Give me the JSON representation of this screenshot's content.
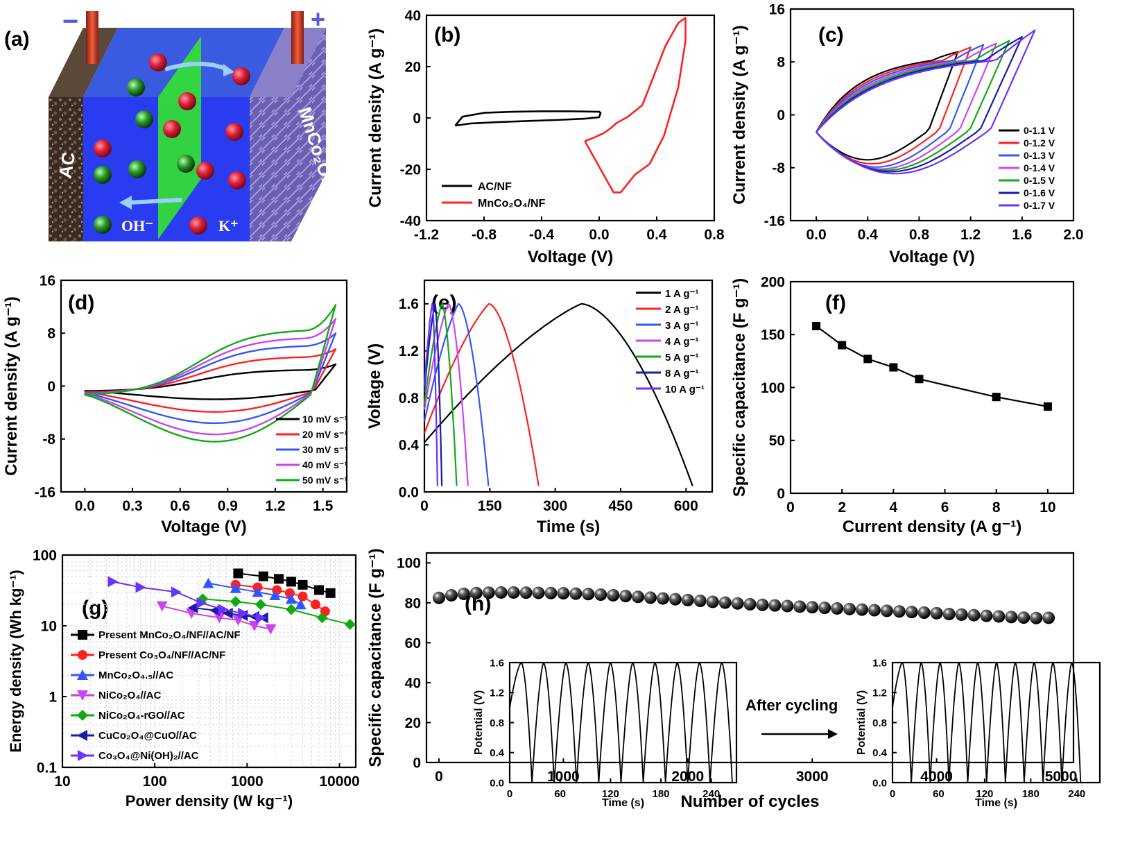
{
  "figure": {
    "panel_labels": {
      "a": "(a)",
      "b": "(b)",
      "c": "(c)",
      "d": "(d)",
      "e": "(e)",
      "f": "(f)",
      "g": "(g)",
      "h": "(h)"
    },
    "schematic": {
      "minus": "−",
      "plus": "+",
      "left_electrode": "AC",
      "right_electrode": "MnCo₂O₄",
      "ion_left": "OH⁻",
      "ion_right": "K⁺"
    }
  },
  "chart_data": [
    {
      "panel": "b",
      "type": "line",
      "xlabel": "Voltage (V)",
      "ylabel": "Current density (A g⁻¹)",
      "xlim": [
        -1.2,
        0.8
      ],
      "ylim": [
        -40,
        40
      ],
      "xticks": [
        -1.2,
        -0.8,
        -0.4,
        0.0,
        0.4,
        0.8
      ],
      "xtick_labels": [
        "-1.2",
        "-0.8",
        "-0.4",
        "0.0",
        "0.4",
        "0.8"
      ],
      "yticks": [
        -40,
        -20,
        0,
        20,
        40
      ],
      "ytick_labels": [
        "-40",
        "-20",
        "0",
        "20",
        "40"
      ],
      "series": [
        {
          "name": "AC/NF",
          "color": "#000000",
          "x": [
            -1.0,
            -0.9,
            -0.7,
            -0.5,
            -0.3,
            -0.1,
            0.0,
            0.01,
            0.0,
            -0.2,
            -0.4,
            -0.6,
            -0.8,
            -0.95,
            -1.0
          ],
          "y": [
            -3,
            -2.2,
            -1.6,
            -1.2,
            -0.8,
            -0.3,
            0.3,
            2.0,
            2.4,
            2.6,
            2.6,
            2.4,
            2.0,
            0.5,
            -3
          ]
        },
        {
          "name": "MnCo₂O₄/NF",
          "color": "#ff2020",
          "x": [
            -0.1,
            -0.05,
            0.03,
            0.1,
            0.15,
            0.25,
            0.35,
            0.45,
            0.55,
            0.6,
            0.6,
            0.55,
            0.46,
            0.37,
            0.3,
            0.2,
            0.12,
            0.08,
            0.03,
            -0.05,
            -0.1
          ],
          "y": [
            -9,
            -14,
            -22,
            -29,
            -29,
            -22,
            -18,
            -7,
            12,
            30,
            39,
            37,
            28,
            15,
            5,
            0.5,
            -2,
            -4,
            -6,
            -8,
            -9
          ]
        }
      ]
    },
    {
      "panel": "c",
      "type": "line",
      "xlabel": "Voltage (V)",
      "ylabel": "Current density (A g⁻¹)",
      "xlim": [
        -0.2,
        2.0
      ],
      "ylim": [
        -16,
        16
      ],
      "xticks": [
        0.0,
        0.4,
        0.8,
        1.2,
        1.6,
        2.0
      ],
      "xtick_labels": [
        "0.0",
        "0.4",
        "0.8",
        "1.2",
        "1.6",
        "2.0"
      ],
      "yticks": [
        -16,
        -8,
        0,
        8,
        16
      ],
      "ytick_labels": [
        "-16",
        "-8",
        "0",
        "8",
        "16"
      ],
      "series": [
        {
          "name": "0-1.1 V",
          "color": "#000000",
          "vmax": 1.1,
          "imax": 9.5,
          "imin": -6.8
        },
        {
          "name": "0-1.2 V",
          "color": "#ff2020",
          "vmax": 1.2,
          "imax": 10.2,
          "imin": -7.4
        },
        {
          "name": "0-1.3 V",
          "color": "#3355ff",
          "vmax": 1.3,
          "imax": 10.6,
          "imin": -7.9
        },
        {
          "name": "0-1.4 V",
          "color": "#cc44ee",
          "vmax": 1.4,
          "imax": 10.8,
          "imin": -8.2
        },
        {
          "name": "0-1.5 V",
          "color": "#11aa11",
          "vmax": 1.5,
          "imax": 11.2,
          "imin": -8.4
        },
        {
          "name": "0-1.6 V",
          "color": "#1a1aa8",
          "vmax": 1.6,
          "imax": 11.8,
          "imin": -8.6
        },
        {
          "name": "0-1.7 V",
          "color": "#6633ff",
          "vmax": 1.7,
          "imax": 12.8,
          "imin": -8.9
        }
      ]
    },
    {
      "panel": "d",
      "type": "line",
      "xlabel": "Voltage (V)",
      "ylabel": "Current density (A g⁻¹)",
      "xlim": [
        -0.15,
        1.65
      ],
      "ylim": [
        -16,
        16
      ],
      "xticks": [
        0.0,
        0.3,
        0.6,
        0.9,
        1.2,
        1.5
      ],
      "xtick_labels": [
        "0.0",
        "0.3",
        "0.6",
        "0.9",
        "1.2",
        "1.5"
      ],
      "yticks": [
        -16,
        -8,
        0,
        8,
        16
      ],
      "ytick_labels": [
        "-16",
        "-8",
        "0",
        "8",
        "16"
      ],
      "series": [
        {
          "name": "10 mV s⁻¹",
          "color": "#000000",
          "top": 2.5,
          "bottom": -2.0,
          "tip": 3.3
        },
        {
          "name": "20 mV s⁻¹",
          "color": "#ff2020",
          "top": 4.5,
          "bottom": -3.9,
          "tip": 5.6
        },
        {
          "name": "30 mV s⁻¹",
          "color": "#3355ff",
          "top": 6.2,
          "bottom": -5.6,
          "tip": 8.0
        },
        {
          "name": "40 mV s⁻¹",
          "color": "#cc44ee",
          "top": 7.4,
          "bottom": -7.3,
          "tip": 10.2
        },
        {
          "name": "50 mV s⁻¹",
          "color": "#11aa11",
          "top": 8.6,
          "bottom": -8.4,
          "tip": 12.3
        }
      ]
    },
    {
      "panel": "e",
      "type": "line",
      "xlabel": "Time (s)",
      "ylabel": "Voltage (V)",
      "xlim": [
        0,
        660
      ],
      "ylim": [
        0,
        1.8
      ],
      "xticks": [
        0,
        150,
        300,
        450,
        600
      ],
      "xtick_labels": [
        "0",
        "150",
        "300",
        "450",
        "600"
      ],
      "yticks": [
        0.0,
        0.4,
        0.8,
        1.2,
        1.6
      ],
      "ytick_labels": [
        "0.0",
        "0.4",
        "0.8",
        "1.2",
        "1.6"
      ],
      "series": [
        {
          "name": "1 A g⁻¹",
          "color": "#000000",
          "charge_end": 360,
          "discharge_end": 615,
          "start_v": 0.42
        },
        {
          "name": "2 A g⁻¹",
          "color": "#ff2020",
          "charge_end": 148,
          "discharge_end": 262,
          "start_v": 0.5
        },
        {
          "name": "3 A g⁻¹",
          "color": "#3355ff",
          "charge_end": 78,
          "discharge_end": 147,
          "start_v": 0.6
        },
        {
          "name": "4 A g⁻¹",
          "color": "#cc44ee",
          "charge_end": 55,
          "discharge_end": 100,
          "start_v": 0.7
        },
        {
          "name": "5 A g⁻¹",
          "color": "#11aa11",
          "charge_end": 40,
          "discharge_end": 74,
          "start_v": 0.75
        },
        {
          "name": "8 A g⁻¹",
          "color": "#1a1aa8",
          "charge_end": 24,
          "discharge_end": 40,
          "start_v": 0.85
        },
        {
          "name": "10 A g⁻¹",
          "color": "#6633ff",
          "charge_end": 18,
          "discharge_end": 30,
          "start_v": 0.9
        }
      ]
    },
    {
      "panel": "f",
      "type": "line",
      "xlabel": "Current density (A g⁻¹)",
      "ylabel": "Specific capacitance (F g⁻¹)",
      "xlim": [
        0,
        11
      ],
      "ylim": [
        0,
        200
      ],
      "xticks": [
        0,
        2,
        4,
        6,
        8,
        10
      ],
      "xtick_labels": [
        "0",
        "2",
        "4",
        "6",
        "8",
        "10"
      ],
      "yticks": [
        0,
        50,
        100,
        150,
        200
      ],
      "ytick_labels": [
        "0",
        "50",
        "100",
        "150",
        "200"
      ],
      "x": [
        1,
        2,
        3,
        4,
        5,
        8,
        10
      ],
      "y": [
        158,
        140,
        127,
        119,
        108,
        91,
        82
      ]
    },
    {
      "panel": "g",
      "type": "scatter",
      "xlabel": "Power density (W kg⁻¹)",
      "ylabel": "Energy density (Wh kg⁻¹)",
      "xscale": "log",
      "yscale": "log",
      "xlim": [
        10,
        15000
      ],
      "ylim": [
        0.1,
        100
      ],
      "xticks": [
        10,
        100,
        1000,
        10000
      ],
      "xtick_labels": [
        "10",
        "100",
        "1000",
        "10000"
      ],
      "yticks": [
        0.1,
        1,
        10,
        100
      ],
      "ytick_labels": [
        "0.1",
        "1",
        "10",
        "100"
      ],
      "series": [
        {
          "name": "Present MnCo₂O₄/NF//AC/NF",
          "color": "#000000",
          "marker": "square",
          "x": [
            800,
            1500,
            2200,
            3000,
            4000,
            6000,
            8000
          ],
          "y": [
            55,
            50,
            46,
            42,
            38,
            32,
            29
          ]
        },
        {
          "name": "Present Co₃O₄/NF//AC/NF",
          "color": "#ff2020",
          "marker": "circle",
          "x": [
            750,
            1300,
            2100,
            2900,
            4000,
            5500,
            7000
          ],
          "y": [
            38,
            35,
            32,
            29,
            26,
            20,
            16
          ]
        },
        {
          "name": "MnCo₂O₄.₅//AC",
          "color": "#3355ff",
          "marker": "triangle-up",
          "x": [
            380,
            750,
            1300,
            2000,
            3000,
            3800
          ],
          "y": [
            40,
            34,
            30,
            27,
            24,
            20
          ]
        },
        {
          "name": "NiCo₂O₄//AC",
          "color": "#cc44ee",
          "marker": "triangle-down",
          "x": [
            120,
            250,
            500,
            800,
            1200,
            1800
          ],
          "y": [
            19,
            15,
            13,
            12,
            10,
            9
          ]
        },
        {
          "name": "NiCo₂O₄-rGO//AC",
          "color": "#11aa11",
          "marker": "diamond",
          "x": [
            330,
            750,
            1400,
            3000,
            6500,
            13000
          ],
          "y": [
            24,
            22,
            20,
            17,
            13,
            10.5
          ]
        },
        {
          "name": "CuCo₂O₄@CuO//AC",
          "color": "#1a1aa8",
          "marker": "triangle-left",
          "x": [
            260,
            450,
            620,
            900,
            1200,
            1500
          ],
          "y": [
            18,
            16.5,
            15,
            14,
            13.5,
            13
          ]
        },
        {
          "name": "Co₃O₄@Ni(OH)₂//AC",
          "color": "#6633ff",
          "marker": "triangle-right",
          "x": [
            35,
            70,
            170,
            320,
            550,
            900,
            1400
          ],
          "y": [
            42,
            35,
            30,
            21,
            17,
            15,
            13
          ]
        }
      ]
    },
    {
      "panel": "h",
      "type": "scatter",
      "xlabel": "Number of cycles",
      "ylabel": "Specific capacitance (F g⁻¹)",
      "xlim": [
        -100,
        5100
      ],
      "ylim": [
        0,
        105
      ],
      "xticks": [
        0,
        1000,
        2000,
        3000,
        4000,
        5000
      ],
      "xtick_labels": [
        "0",
        "1000",
        "2000",
        "3000",
        "4000",
        "5000"
      ],
      "yticks": [
        0,
        20,
        40,
        60,
        80,
        100
      ],
      "ytick_labels": [
        "0",
        "20",
        "40",
        "60",
        "80",
        "100"
      ],
      "x": [
        0,
        100,
        200,
        300,
        400,
        500,
        600,
        700,
        800,
        900,
        1000,
        1100,
        1200,
        1300,
        1400,
        1500,
        1600,
        1700,
        1800,
        1900,
        2000,
        2100,
        2200,
        2300,
        2400,
        2500,
        2600,
        2700,
        2800,
        2900,
        3000,
        3100,
        3200,
        3300,
        3400,
        3500,
        3600,
        3700,
        3800,
        3900,
        4000,
        4100,
        4200,
        4300,
        4400,
        4500,
        4600,
        4700,
        4800,
        4900
      ],
      "y": [
        82.5,
        83.8,
        84.5,
        84.9,
        85.1,
        85.2,
        85.2,
        85.1,
        85.0,
        84.9,
        84.8,
        84.6,
        84.4,
        84.1,
        83.8,
        83.4,
        83.0,
        82.6,
        82.2,
        81.8,
        81.4,
        81.0,
        80.5,
        80.1,
        79.7,
        79.3,
        79.0,
        78.7,
        78.4,
        78.1,
        77.8,
        77.5,
        77.2,
        76.9,
        76.6,
        76.3,
        76.0,
        75.7,
        75.4,
        75.1,
        74.8,
        74.4,
        74.1,
        73.8,
        73.5,
        73.2,
        72.9,
        72.6,
        72.4,
        72.5
      ],
      "annotation": "After cycling",
      "insets": [
        {
          "name": "before",
          "xlabel": "Time (s)",
          "ylabel": "Potential (V)",
          "xticks": [
            0,
            60,
            120,
            180,
            240
          ],
          "xtick_labels": [
            "0",
            "60",
            "120",
            "180",
            "240"
          ],
          "yticks": [
            0.0,
            0.4,
            0.8,
            1.2,
            1.6
          ],
          "ytick_labels": [
            "0.0",
            "0.4",
            "0.8",
            "1.2",
            "1.6"
          ],
          "cycles": 10,
          "period": 26.5
        },
        {
          "name": "after",
          "xlabel": "Time (s)",
          "ylabel": "Potential (V)",
          "xticks": [
            0,
            60,
            120,
            180,
            240
          ],
          "xtick_labels": [
            "0",
            "60",
            "120",
            "180",
            "240"
          ],
          "yticks": [
            0.0,
            0.4,
            0.8,
            1.2,
            1.6
          ],
          "ytick_labels": [
            "0.0",
            "0.4",
            "0.8",
            "1.2",
            "1.6"
          ],
          "cycles": 10,
          "period": 24.5
        }
      ]
    }
  ]
}
